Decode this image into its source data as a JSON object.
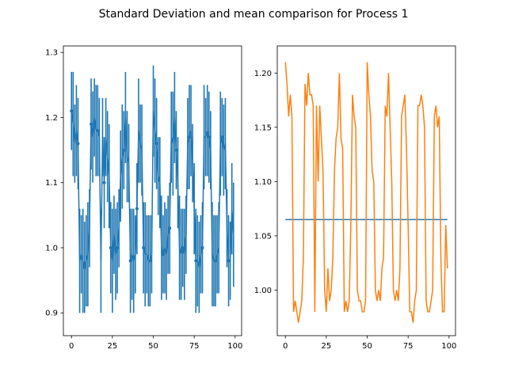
{
  "figure": {
    "title": "Standard Deviation and mean comparison for Process 1"
  },
  "chart_data": [
    {
      "type": "errorbar",
      "series": [
        {
          "values": [
            1.21,
            1.19,
            1.16,
            1.18,
            1.16,
            0.98,
            0.99,
            0.98,
            0.97,
            0.98,
            0.99,
            1.03,
            1.19,
            1.17,
            1.2,
            1.18,
            1.18,
            1.17,
            0.98,
            1.17,
            1.1,
            1.17,
            1.14,
            1.11,
            1.0,
            0.98,
            1.02,
            0.99,
            1.0,
            1.03,
            1.11,
            1.14,
            1.15,
            1.2,
            1.14,
            1.13,
            0.98,
            0.99,
            0.98,
            0.99,
            1.06,
            1.18,
            1.16,
            1.15,
            1.0,
            0.99,
            0.99,
            0.98,
            0.98,
            0.99,
            1.21,
            1.18,
            1.16,
            1.11,
            1.1,
            1.0,
            0.99,
            1.0,
            0.99,
            1.02,
            1.03,
            1.17,
            1.16,
            1.2,
            1.15,
            1.1,
            1.0,
            0.99,
            1.0,
            0.99,
            1.02,
            1.16,
            1.17,
            1.18,
            1.13,
            1.06,
            0.98,
            0.98,
            0.97,
            0.99,
            1.0,
            1.17,
            1.17,
            1.18,
            1.17,
            1.15,
            0.99,
            0.98,
            0.98,
            0.99,
            1.0,
            1.16,
            1.17,
            1.15,
            1.16,
            1.03,
            0.98,
            0.98,
            1.06,
            1.02
          ],
          "err": [
            0.06,
            0.08,
            0.06,
            0.07,
            0.07,
            0.08,
            0.06,
            0.08,
            0.07,
            0.07,
            0.08,
            0.06,
            0.07,
            0.07,
            0.06,
            0.07,
            0.07,
            0.06,
            0.08,
            0.06,
            0.07,
            0.06,
            0.07,
            0.08,
            0.07,
            0.08,
            0.06,
            0.07,
            0.07,
            0.06,
            0.07,
            0.08,
            0.06,
            0.07,
            0.07,
            0.06,
            0.08,
            0.07,
            0.08,
            0.06,
            0.07,
            0.08,
            0.06,
            0.07,
            0.07,
            0.08,
            0.06,
            0.07,
            0.07,
            0.06,
            0.07,
            0.08,
            0.07,
            0.06,
            0.07,
            0.08,
            0.06,
            0.07,
            0.07,
            0.06,
            0.07,
            0.07,
            0.08,
            0.07,
            0.06,
            0.07,
            0.08,
            0.07,
            0.06,
            0.07,
            0.06,
            0.07,
            0.08,
            0.07,
            0.06,
            0.07,
            0.08,
            0.07,
            0.07,
            0.06,
            0.07,
            0.08,
            0.06,
            0.07,
            0.07,
            0.06,
            0.08,
            0.07,
            0.07,
            0.06,
            0.07,
            0.08,
            0.06,
            0.07,
            0.07,
            0.06,
            0.07,
            0.06,
            0.07,
            0.08
          ],
          "color": "#1f77b4"
        }
      ],
      "x_start": 0,
      "xlim": [
        -4.95,
        103.95
      ],
      "ylim": [
        0.865,
        1.31
      ],
      "xticks": [
        "0",
        "25",
        "50",
        "75",
        "100"
      ],
      "yticks": [
        "0.9",
        "1.0",
        "1.1",
        "1.2",
        "1.3"
      ]
    },
    {
      "type": "line",
      "series": [
        {
          "values": [
            1.065,
            1.065
          ],
          "x": [
            0,
            99
          ],
          "color": "#1f77b4"
        },
        {
          "values": [
            1.21,
            1.19,
            1.16,
            1.18,
            1.16,
            0.98,
            0.99,
            0.98,
            0.97,
            0.98,
            0.99,
            1.03,
            1.19,
            1.17,
            1.2,
            1.18,
            1.18,
            1.17,
            0.98,
            1.17,
            1.1,
            1.17,
            1.14,
            1.11,
            1.0,
            0.98,
            1.02,
            0.99,
            1.0,
            1.03,
            1.11,
            1.14,
            1.15,
            1.2,
            1.14,
            1.13,
            0.98,
            0.99,
            0.98,
            0.99,
            1.06,
            1.18,
            1.16,
            1.15,
            1.0,
            0.99,
            0.99,
            0.98,
            0.98,
            0.99,
            1.21,
            1.18,
            1.16,
            1.11,
            1.1,
            1.0,
            0.99,
            1.0,
            0.99,
            1.02,
            1.03,
            1.17,
            1.16,
            1.2,
            1.15,
            1.1,
            1.0,
            0.99,
            1.0,
            0.99,
            1.02,
            1.16,
            1.17,
            1.18,
            1.13,
            1.06,
            0.98,
            0.98,
            0.97,
            0.99,
            1.0,
            1.17,
            1.17,
            1.18,
            1.17,
            1.15,
            0.99,
            0.98,
            0.98,
            0.99,
            1.0,
            1.16,
            1.17,
            1.15,
            1.16,
            1.03,
            0.98,
            0.98,
            1.06,
            1.02
          ],
          "color": "#ff7f0e"
        }
      ],
      "xlim": [
        -4.95,
        103.95
      ],
      "ylim": [
        0.958,
        1.225
      ],
      "xticks": [
        "0",
        "25",
        "50",
        "75",
        "100"
      ],
      "yticks": [
        "1.00",
        "1.05",
        "1.10",
        "1.15",
        "1.20"
      ]
    }
  ]
}
